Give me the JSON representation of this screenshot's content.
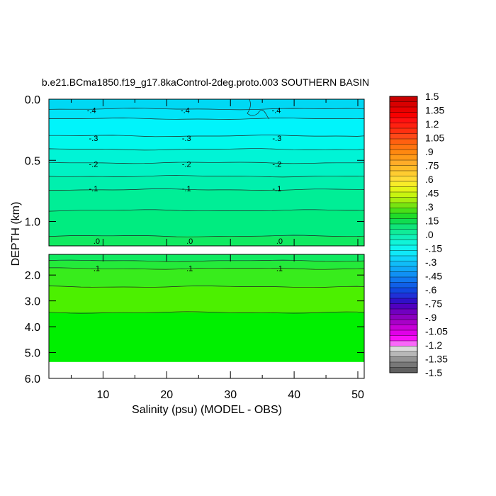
{
  "chart_data": {
    "type": "heatmap",
    "title": "b.e21.BCma1850.f19_g17.8kaControl-2deg.proto.003 SOUTHERN BASIN",
    "xlabel": "Salinity (psu) (MODEL - OBS)",
    "ylabel": "DEPTH (km)",
    "x_ticks": [
      "10",
      "20",
      "30",
      "40",
      "50"
    ],
    "x_tick_values": [
      10,
      20,
      30,
      40,
      50
    ],
    "xlim": [
      1.5,
      51
    ],
    "upper_panel": {
      "ylim": [
        0,
        1.2
      ],
      "y_ticks": [
        "0.0",
        "0.5",
        "1.0"
      ],
      "y_tick_values": [
        0.0,
        0.5,
        1.0
      ]
    },
    "lower_panel": {
      "ylim": [
        1.2,
        6.0
      ],
      "y_ticks": [
        "2.0",
        "3.0",
        "4.0",
        "5.0",
        "6.0"
      ],
      "y_tick_values": [
        2.0,
        3.0,
        4.0,
        5.0,
        6.0
      ]
    },
    "bottom_of_data_depth": 5.35,
    "contour_levels": [
      {
        "depth": 0.08,
        "value": -0.45,
        "color": "#00d8f4"
      },
      {
        "depth": 0.16,
        "value": -0.4,
        "color": "#00e4f8"
      },
      {
        "depth": 0.3,
        "value": -0.3,
        "color": "#00f4fb"
      },
      {
        "depth": 0.41,
        "value": -0.25,
        "color": "#00f8ec"
      },
      {
        "depth": 0.52,
        "value": -0.2,
        "color": "#00f4d6"
      },
      {
        "depth": 0.63,
        "value": -0.15,
        "color": "#00f2c4"
      },
      {
        "depth": 0.74,
        "value": -0.1,
        "color": "#00f0ae"
      },
      {
        "depth": 0.91,
        "value": -0.05,
        "color": "#00ee96"
      },
      {
        "depth": 1.12,
        "value": 0.0,
        "color": "#00ec80"
      },
      {
        "depth": 1.45,
        "value": 0.05,
        "color": "#10ea60"
      },
      {
        "depth": 1.75,
        "value": 0.1,
        "color": "#24ea3a"
      },
      {
        "depth": 2.45,
        "value": 0.15,
        "color": "#38ec1c"
      },
      {
        "depth": 3.45,
        "value": 0.2,
        "color": "#4cf000"
      },
      {
        "depth": 5.35,
        "value": 0.25,
        "color": "#00f000"
      }
    ],
    "contour_labels": [
      {
        "text": "-.4",
        "x": [
          8.2,
          22.9,
          37.2
        ],
        "depth": 0.09
      },
      {
        "text": "-.3",
        "x": [
          8.5,
          23.1,
          37.3
        ],
        "depth": 0.32
      },
      {
        "text": "-.2",
        "x": [
          8.5,
          23.1,
          37.3
        ],
        "depth": 0.53
      },
      {
        "text": "-.1",
        "x": [
          8.5,
          23.1,
          37.3
        ],
        "depth": 0.73
      },
      {
        "text": ".0",
        "x": [
          9.0,
          23.6,
          37.7
        ],
        "depth": 1.16
      },
      {
        "text": ".1",
        "x": [
          9.0,
          23.6,
          37.7
        ],
        "depth": 1.73
      }
    ],
    "colorbar": {
      "labels": [
        "1.5",
        "1.35",
        "1.2",
        "1.05",
        ".9",
        ".75",
        ".6",
        ".45",
        ".3",
        ".15",
        ".0",
        "-.15",
        "-.3",
        "-.45",
        "-.6",
        "-.75",
        "-.9",
        "-1.05",
        "-1.2",
        "-1.35",
        "-1.5"
      ],
      "colors": [
        "#c80000",
        "#d80000",
        "#e80000",
        "#f80000",
        "#ff1010",
        "#ff2010",
        "#ff3010",
        "#ff4818",
        "#ff6010",
        "#ff7410",
        "#ff8810",
        "#ff9a18",
        "#ffac28",
        "#ffbc28",
        "#ffcc30",
        "#ffdc38",
        "#f8ec28",
        "#e4f418",
        "#c8f410",
        "#a8ee10",
        "#78e410",
        "#48e018",
        "#20dc28",
        "#10dc50",
        "#10e478",
        "#10ec98",
        "#10f0b8",
        "#10f4d8",
        "#10f4f0",
        "#10e8f8",
        "#10d4fa",
        "#10bcf8",
        "#10a8f8",
        "#1090f4",
        "#1078f0",
        "#1060e8",
        "#1048e0",
        "#2030d8",
        "#3010c8",
        "#5000c0",
        "#7000c0",
        "#8c00c0",
        "#a800c8",
        "#c800d8",
        "#e000e8",
        "#f810f8",
        "#fa68fa",
        "#dcdcdc",
        "#b8b8b8",
        "#949494",
        "#787878",
        "#606060"
      ]
    }
  }
}
